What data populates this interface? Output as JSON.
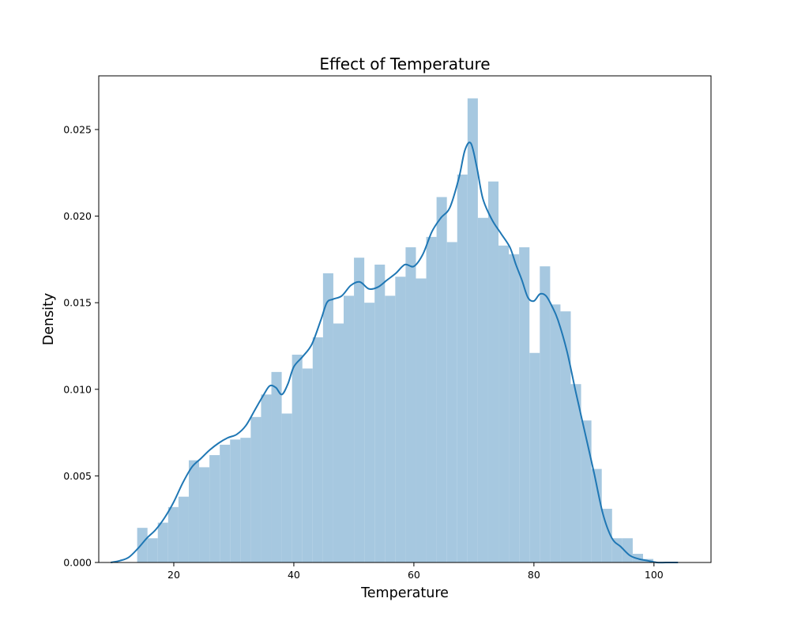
{
  "chart_data": {
    "type": "bar",
    "title": "Effect of Temperature",
    "xlabel": "Temperature",
    "ylabel": "Density",
    "xlim": [
      7.5,
      109.5
    ],
    "ylim": [
      0,
      0.0281
    ],
    "xticks": [
      20,
      40,
      60,
      80,
      100
    ],
    "xtick_labels": [
      "20",
      "40",
      "60",
      "80",
      "100"
    ],
    "yticks": [
      0,
      0.005,
      0.01,
      0.015,
      0.02,
      0.025
    ],
    "ytick_labels": [
      "0.000",
      "0.005",
      "0.010",
      "0.015",
      "0.020",
      "0.025"
    ],
    "grid": false,
    "histogram": {
      "bin_start": 13.9,
      "bin_width": 1.72,
      "values": [
        0.002,
        0.0014,
        0.0023,
        0.0032,
        0.0038,
        0.0059,
        0.0055,
        0.0062,
        0.0068,
        0.0071,
        0.0072,
        0.0084,
        0.0097,
        0.011,
        0.0086,
        0.012,
        0.0112,
        0.013,
        0.0167,
        0.0138,
        0.0154,
        0.0176,
        0.015,
        0.0172,
        0.0154,
        0.0165,
        0.0182,
        0.0164,
        0.0188,
        0.0211,
        0.0185,
        0.0224,
        0.0268,
        0.0199,
        0.022,
        0.0183,
        0.0178,
        0.0182,
        0.0121,
        0.0171,
        0.0149,
        0.0145,
        0.0103,
        0.0082,
        0.0054,
        0.0031,
        0.0014,
        0.0014,
        0.0005,
        0.0002
      ]
    },
    "kde": {
      "x": [
        9.5,
        11,
        12.5,
        14,
        15.5,
        17,
        18.5,
        20,
        21.5,
        23,
        24.5,
        26,
        27.5,
        29,
        30.5,
        32,
        33.5,
        35,
        36,
        37,
        38,
        39,
        40,
        41.5,
        43,
        44.5,
        45.5,
        46.5,
        48,
        49.5,
        51,
        52.5,
        54,
        55.5,
        57,
        58.5,
        60,
        61.5,
        63,
        64.5,
        66,
        67.5,
        68.5,
        69.5,
        70.5,
        71.5,
        73,
        74.5,
        76,
        77,
        78,
        79,
        80,
        81,
        82,
        83,
        84,
        85.5,
        87,
        88.5,
        90,
        91.5,
        93,
        94.5,
        96,
        97.5,
        99,
        100.5,
        102,
        104
      ],
      "y": [
        0,
        0.0001,
        0.0003,
        0.0008,
        0.0014,
        0.0019,
        0.0026,
        0.0035,
        0.0046,
        0.0055,
        0.006,
        0.0065,
        0.0069,
        0.0072,
        0.0074,
        0.0079,
        0.0088,
        0.0097,
        0.0102,
        0.0101,
        0.0097,
        0.0103,
        0.0113,
        0.0119,
        0.0126,
        0.014,
        0.015,
        0.0152,
        0.0154,
        0.016,
        0.0162,
        0.0158,
        0.0159,
        0.0163,
        0.0167,
        0.0172,
        0.0171,
        0.0178,
        0.0191,
        0.0199,
        0.0205,
        0.0222,
        0.0238,
        0.0242,
        0.0228,
        0.021,
        0.0198,
        0.019,
        0.0182,
        0.0172,
        0.0163,
        0.0153,
        0.0151,
        0.0155,
        0.0154,
        0.0148,
        0.014,
        0.0122,
        0.0098,
        0.0075,
        0.0052,
        0.0028,
        0.0014,
        0.0009,
        0.0004,
        0.0002,
        0.0001,
        0,
        0,
        0
      ]
    }
  },
  "colors": {
    "bar": "#a6c8e0",
    "line": "#1f77b4",
    "axis": "#000000",
    "background": "#ffffff"
  }
}
